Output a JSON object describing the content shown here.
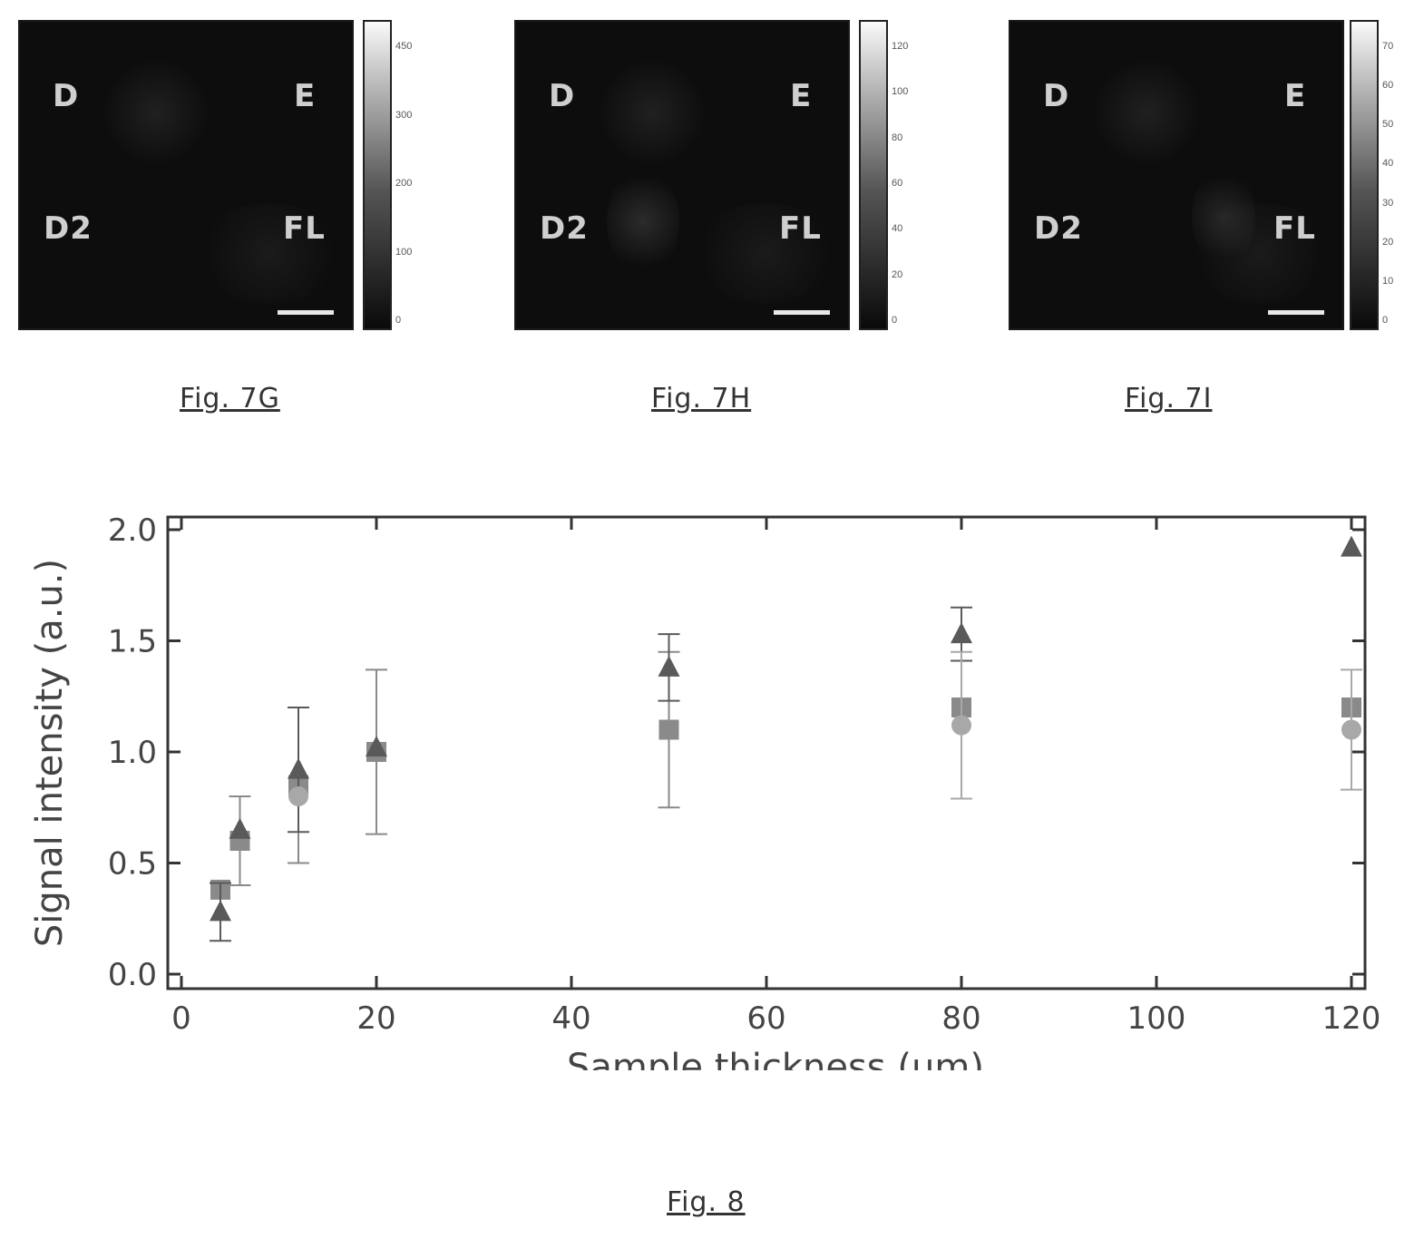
{
  "panels": [
    {
      "caption": "Fig. 7G",
      "labels": {
        "top_left": "D",
        "top_right": "E",
        "bottom_left": "D2",
        "bottom_right": "FL"
      },
      "colorbar_ticks": [
        "450",
        "300",
        "200",
        "100",
        "0"
      ]
    },
    {
      "caption": "Fig. 7H",
      "labels": {
        "top_left": "D",
        "top_right": "E",
        "bottom_left": "D2",
        "bottom_right": "FL"
      },
      "colorbar_ticks": [
        "120",
        "100",
        "80",
        "60",
        "40",
        "20",
        "0"
      ]
    },
    {
      "caption": "Fig. 7I",
      "labels": {
        "top_left": "D",
        "top_right": "E",
        "bottom_left": "D2",
        "bottom_right": "FL"
      },
      "colorbar_ticks": [
        "70",
        "60",
        "50",
        "40",
        "30",
        "20",
        "10",
        "0"
      ]
    }
  ],
  "chart_caption": "Fig. 8",
  "chart_data": {
    "type": "scatter",
    "xlabel": "Sample thickness (µm)",
    "ylabel": "Signal intensity (a.u.)",
    "xlim": [
      0,
      120
    ],
    "ylim": [
      0.0,
      2.0
    ],
    "xticks": [
      "0",
      "20",
      "40",
      "60",
      "80",
      "100",
      "120"
    ],
    "yticks": [
      "0.0",
      "0.5",
      "1.0",
      "1.5",
      "2.0"
    ],
    "series": [
      {
        "marker": "square",
        "color": "#8a8a8a",
        "points": [
          {
            "x": 4,
            "y": 0.38,
            "err": 0.0
          },
          {
            "x": 6,
            "y": 0.6,
            "err": 0.2
          },
          {
            "x": 12,
            "y": 0.85,
            "err": 0.35
          },
          {
            "x": 20,
            "y": 1.0,
            "err": 0.37
          },
          {
            "x": 50,
            "y": 1.1,
            "err": 0.35
          },
          {
            "x": 80,
            "y": 1.2,
            "err": 0.0
          },
          {
            "x": 120,
            "y": 1.2,
            "err": 0.0
          }
        ]
      },
      {
        "marker": "triangle",
        "color": "#5a5a5a",
        "points": [
          {
            "x": 4,
            "y": 0.28,
            "err": 0.13
          },
          {
            "x": 6,
            "y": 0.65,
            "err": 0.0
          },
          {
            "x": 12,
            "y": 0.92,
            "err": 0.28
          },
          {
            "x": 20,
            "y": 1.02,
            "err": 0.0
          },
          {
            "x": 50,
            "y": 1.38,
            "err": 0.15
          },
          {
            "x": 80,
            "y": 1.53,
            "err": 0.12
          },
          {
            "x": 120,
            "y": 1.92,
            "err": 0.0
          }
        ]
      },
      {
        "marker": "circle",
        "color": "#a8a8a8",
        "points": [
          {
            "x": 12,
            "y": 0.8,
            "err": 0.0
          },
          {
            "x": 80,
            "y": 1.12,
            "err": 0.33
          },
          {
            "x": 120,
            "y": 1.1,
            "err": 0.27
          }
        ]
      }
    ]
  }
}
